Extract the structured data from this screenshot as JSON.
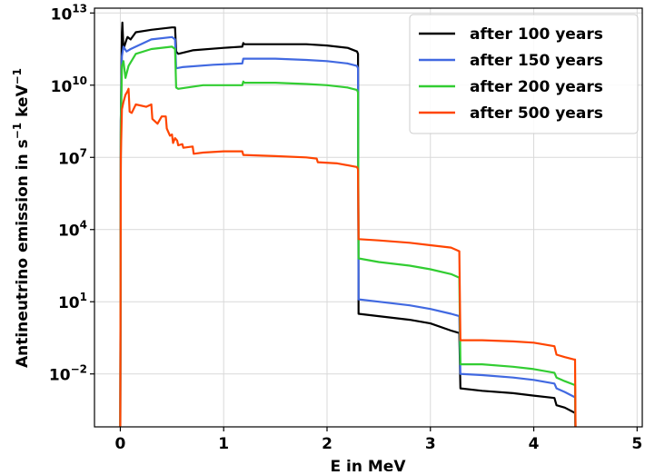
{
  "chart_data": {
    "type": "line",
    "title": "",
    "xlabel": "E in MeV",
    "ylabel_parts": [
      "Antineutrino emission in s",
      "−1",
      " keV",
      "−1"
    ],
    "xlim": [
      -0.25,
      5.05
    ],
    "ylim_log10": [
      -4.2,
      13.2
    ],
    "yscale": "log",
    "grid": true,
    "legend_position": "top-right",
    "x_ticks": [
      0,
      1,
      2,
      3,
      4,
      5
    ],
    "x_tick_labels": [
      "0",
      "1",
      "2",
      "3",
      "4",
      "5"
    ],
    "y_ticks_log10": [
      -2,
      1,
      4,
      7,
      10,
      13
    ],
    "y_tick_exponents": [
      "−2",
      "1",
      "4",
      "7",
      "10",
      "13"
    ],
    "y_tick_base": "10",
    "series": [
      {
        "name": "after 100 years",
        "color": "#000000",
        "points": [
          [
            0.0,
            -4.5
          ],
          [
            0.005,
            8.5
          ],
          [
            0.015,
            12.2
          ],
          [
            0.02,
            12.6
          ],
          [
            0.03,
            11.5
          ],
          [
            0.06,
            11.9
          ],
          [
            0.07,
            12.0
          ],
          [
            0.1,
            11.9
          ],
          [
            0.15,
            12.2
          ],
          [
            0.3,
            12.3
          ],
          [
            0.5,
            12.4
          ],
          [
            0.53,
            12.4
          ],
          [
            0.54,
            11.4
          ],
          [
            0.56,
            11.3
          ],
          [
            0.7,
            11.45
          ],
          [
            1.0,
            11.55
          ],
          [
            1.18,
            11.6
          ],
          [
            1.19,
            11.75
          ],
          [
            1.2,
            11.7
          ],
          [
            1.5,
            11.7
          ],
          [
            1.8,
            11.7
          ],
          [
            2.0,
            11.65
          ],
          [
            2.2,
            11.55
          ],
          [
            2.29,
            11.4
          ],
          [
            2.3,
            11.3
          ],
          [
            2.305,
            0.5
          ],
          [
            2.5,
            0.4
          ],
          [
            2.8,
            0.25
          ],
          [
            3.0,
            0.1
          ],
          [
            3.2,
            -0.2
          ],
          [
            3.28,
            -0.3
          ],
          [
            3.29,
            -2.6
          ],
          [
            3.5,
            -2.7
          ],
          [
            3.8,
            -2.8
          ],
          [
            4.0,
            -2.9
          ],
          [
            4.2,
            -3.0
          ],
          [
            4.22,
            -3.3
          ],
          [
            4.3,
            -3.4
          ],
          [
            4.39,
            -3.6
          ],
          [
            4.4,
            -3.6
          ],
          [
            4.405,
            -4.5
          ]
        ]
      },
      {
        "name": "after 150 years",
        "color": "#4169e1",
        "points": [
          [
            0.0,
            -4.5
          ],
          [
            0.005,
            8.5
          ],
          [
            0.015,
            11.2
          ],
          [
            0.03,
            11.6
          ],
          [
            0.06,
            11.4
          ],
          [
            0.1,
            11.5
          ],
          [
            0.3,
            11.9
          ],
          [
            0.5,
            12.0
          ],
          [
            0.53,
            11.9
          ],
          [
            0.54,
            10.7
          ],
          [
            0.6,
            10.75
          ],
          [
            0.9,
            10.85
          ],
          [
            1.18,
            10.9
          ],
          [
            1.19,
            11.1
          ],
          [
            1.5,
            11.1
          ],
          [
            1.8,
            11.05
          ],
          [
            2.0,
            11.0
          ],
          [
            2.2,
            10.9
          ],
          [
            2.29,
            10.8
          ],
          [
            2.3,
            10.7
          ],
          [
            2.305,
            1.1
          ],
          [
            2.5,
            1.0
          ],
          [
            2.8,
            0.85
          ],
          [
            3.0,
            0.7
          ],
          [
            3.2,
            0.5
          ],
          [
            3.28,
            0.4
          ],
          [
            3.29,
            -2.0
          ],
          [
            3.5,
            -2.05
          ],
          [
            3.8,
            -2.15
          ],
          [
            4.0,
            -2.25
          ],
          [
            4.2,
            -2.4
          ],
          [
            4.22,
            -2.6
          ],
          [
            4.3,
            -2.75
          ],
          [
            4.39,
            -2.95
          ],
          [
            4.4,
            -2.95
          ],
          [
            4.405,
            -4.5
          ]
        ]
      },
      {
        "name": "after 200 years",
        "color": "#32cd32",
        "points": [
          [
            0.0,
            -4.5
          ],
          [
            0.005,
            8.0
          ],
          [
            0.015,
            10.8
          ],
          [
            0.03,
            11.0
          ],
          [
            0.05,
            10.3
          ],
          [
            0.08,
            10.8
          ],
          [
            0.15,
            11.3
          ],
          [
            0.3,
            11.5
          ],
          [
            0.5,
            11.6
          ],
          [
            0.53,
            11.5
          ],
          [
            0.54,
            9.9
          ],
          [
            0.56,
            9.85
          ],
          [
            0.8,
            10.0
          ],
          [
            1.18,
            10.0
          ],
          [
            1.19,
            10.15
          ],
          [
            1.2,
            10.1
          ],
          [
            1.5,
            10.1
          ],
          [
            1.8,
            10.05
          ],
          [
            2.0,
            10.0
          ],
          [
            2.2,
            9.9
          ],
          [
            2.29,
            9.8
          ],
          [
            2.3,
            9.7
          ],
          [
            2.305,
            2.8
          ],
          [
            2.5,
            2.65
          ],
          [
            2.8,
            2.5
          ],
          [
            3.0,
            2.35
          ],
          [
            3.2,
            2.15
          ],
          [
            3.28,
            2.0
          ],
          [
            3.29,
            -1.6
          ],
          [
            3.5,
            -1.6
          ],
          [
            3.8,
            -1.7
          ],
          [
            4.0,
            -1.8
          ],
          [
            4.2,
            -1.95
          ],
          [
            4.22,
            -2.15
          ],
          [
            4.3,
            -2.3
          ],
          [
            4.39,
            -2.45
          ],
          [
            4.4,
            -2.45
          ],
          [
            4.405,
            -4.5
          ]
        ]
      },
      {
        "name": "after 500 years",
        "color": "#ff4500",
        "points": [
          [
            0.0,
            -4.5
          ],
          [
            0.005,
            7.0
          ],
          [
            0.015,
            9.0
          ],
          [
            0.03,
            9.3
          ],
          [
            0.05,
            9.6
          ],
          [
            0.07,
            9.75
          ],
          [
            0.08,
            9.85
          ],
          [
            0.09,
            8.9
          ],
          [
            0.11,
            8.85
          ],
          [
            0.15,
            9.2
          ],
          [
            0.25,
            9.1
          ],
          [
            0.3,
            9.2
          ],
          [
            0.31,
            8.6
          ],
          [
            0.36,
            8.4
          ],
          [
            0.4,
            8.7
          ],
          [
            0.44,
            8.7
          ],
          [
            0.45,
            8.2
          ],
          [
            0.48,
            7.9
          ],
          [
            0.5,
            7.95
          ],
          [
            0.51,
            7.6
          ],
          [
            0.53,
            7.8
          ],
          [
            0.55,
            7.7
          ],
          [
            0.56,
            7.5
          ],
          [
            0.6,
            7.55
          ],
          [
            0.61,
            7.4
          ],
          [
            0.7,
            7.45
          ],
          [
            0.71,
            7.15
          ],
          [
            0.8,
            7.2
          ],
          [
            1.0,
            7.25
          ],
          [
            1.18,
            7.25
          ],
          [
            1.19,
            7.1
          ],
          [
            1.5,
            7.05
          ],
          [
            1.8,
            7.0
          ],
          [
            1.9,
            6.95
          ],
          [
            1.91,
            6.8
          ],
          [
            2.1,
            6.75
          ],
          [
            2.29,
            6.6
          ],
          [
            2.3,
            6.5
          ],
          [
            2.305,
            3.6
          ],
          [
            2.5,
            3.55
          ],
          [
            2.8,
            3.45
          ],
          [
            3.0,
            3.35
          ],
          [
            3.2,
            3.25
          ],
          [
            3.28,
            3.1
          ],
          [
            3.29,
            -0.6
          ],
          [
            3.5,
            -0.6
          ],
          [
            3.8,
            -0.65
          ],
          [
            4.0,
            -0.7
          ],
          [
            4.2,
            -0.85
          ],
          [
            4.22,
            -1.2
          ],
          [
            4.3,
            -1.3
          ],
          [
            4.39,
            -1.4
          ],
          [
            4.4,
            -1.4
          ],
          [
            4.405,
            -4.5
          ]
        ]
      }
    ]
  }
}
